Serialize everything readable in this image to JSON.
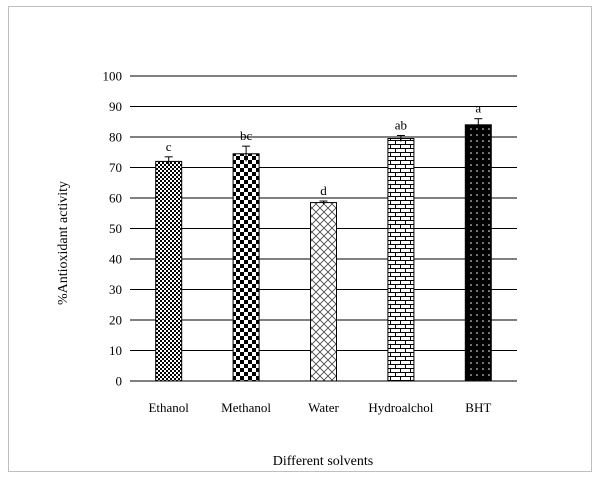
{
  "chart_data": {
    "type": "bar",
    "title": "",
    "xlabel": "Different solvents",
    "ylabel": "%Antioxidant activity",
    "categories": [
      "Ethanol",
      "Methanol",
      "Water",
      "Hydroalchol",
      "BHT"
    ],
    "values": [
      72,
      74.5,
      58.5,
      79.5,
      84
    ],
    "errors": [
      1.5,
      2.5,
      0.5,
      1.0,
      2.0
    ],
    "significance_letters": [
      "c",
      "bc",
      "d",
      "ab",
      "a"
    ],
    "ylim": [
      0,
      100
    ],
    "yticks": [
      0,
      10,
      20,
      30,
      40,
      50,
      60,
      70,
      80,
      90,
      100
    ],
    "grid": true,
    "legend": "none",
    "bar_patterns": [
      "small-checker",
      "large-checker",
      "diagonal-lattice",
      "brick",
      "dotted-black"
    ]
  }
}
